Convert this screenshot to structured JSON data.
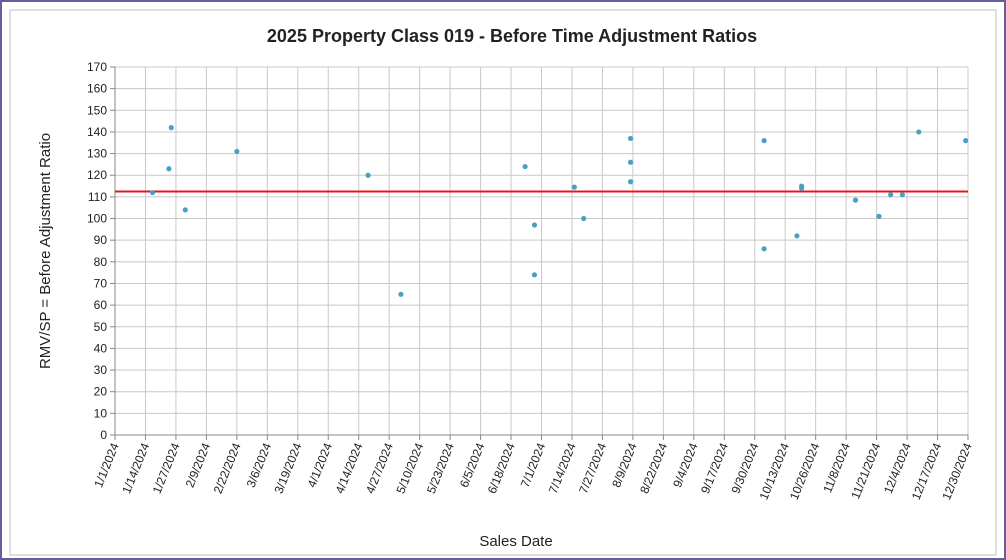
{
  "chart_data": {
    "type": "scatter",
    "title": "2025 Property Class 019 - Before Time Adjustment Ratios",
    "xlabel": "Sales Date",
    "ylabel": "RMV/SP = Before Adjustment  Ratio",
    "xlim": [
      "1/1/2024",
      "12/30/2024"
    ],
    "xticks": [
      "1/1/2024",
      "1/14/2024",
      "1/27/2024",
      "2/9/2024",
      "2/22/2024",
      "3/6/2024",
      "3/19/2024",
      "4/1/2024",
      "4/14/2024",
      "4/27/2024",
      "5/10/2024",
      "5/23/2024",
      "6/5/2024",
      "6/18/2024",
      "7/1/2024",
      "7/14/2024",
      "7/27/2024",
      "8/9/2024",
      "8/22/2024",
      "9/4/2024",
      "9/17/2024",
      "9/30/2024",
      "10/13/2024",
      "10/26/2024",
      "11/8/2024",
      "11/21/2024",
      "12/4/2024",
      "12/17/2024",
      "12/30/2024"
    ],
    "ylim": [
      0,
      170
    ],
    "yticks": [
      0,
      10,
      20,
      30,
      40,
      50,
      60,
      70,
      80,
      90,
      100,
      110,
      120,
      130,
      140,
      150,
      160,
      170
    ],
    "grid": true,
    "color": "#4a9fc4",
    "reference_line": {
      "value": 112.5,
      "color": "#e8141c"
    },
    "x": [
      "1/17/2024",
      "1/24/2024",
      "1/25/2024",
      "1/31/2024",
      "2/22/2024",
      "4/18/2024",
      "5/2/2024",
      "6/24/2024",
      "6/28/2024",
      "6/28/2024",
      "7/15/2024",
      "7/19/2024",
      "8/8/2024",
      "8/8/2024",
      "8/8/2024",
      "10/4/2024",
      "10/4/2024",
      "10/18/2024",
      "10/20/2024",
      "10/20/2024",
      "11/12/2024",
      "11/22/2024",
      "11/27/2024",
      "12/2/2024",
      "12/9/2024",
      "12/29/2024"
    ],
    "values": [
      112,
      123,
      142,
      104,
      131,
      120,
      65,
      124,
      97,
      74,
      114.5,
      100,
      137,
      126,
      117,
      136,
      86,
      92,
      115,
      114,
      108.5,
      101,
      111,
      111,
      140,
      136
    ]
  }
}
